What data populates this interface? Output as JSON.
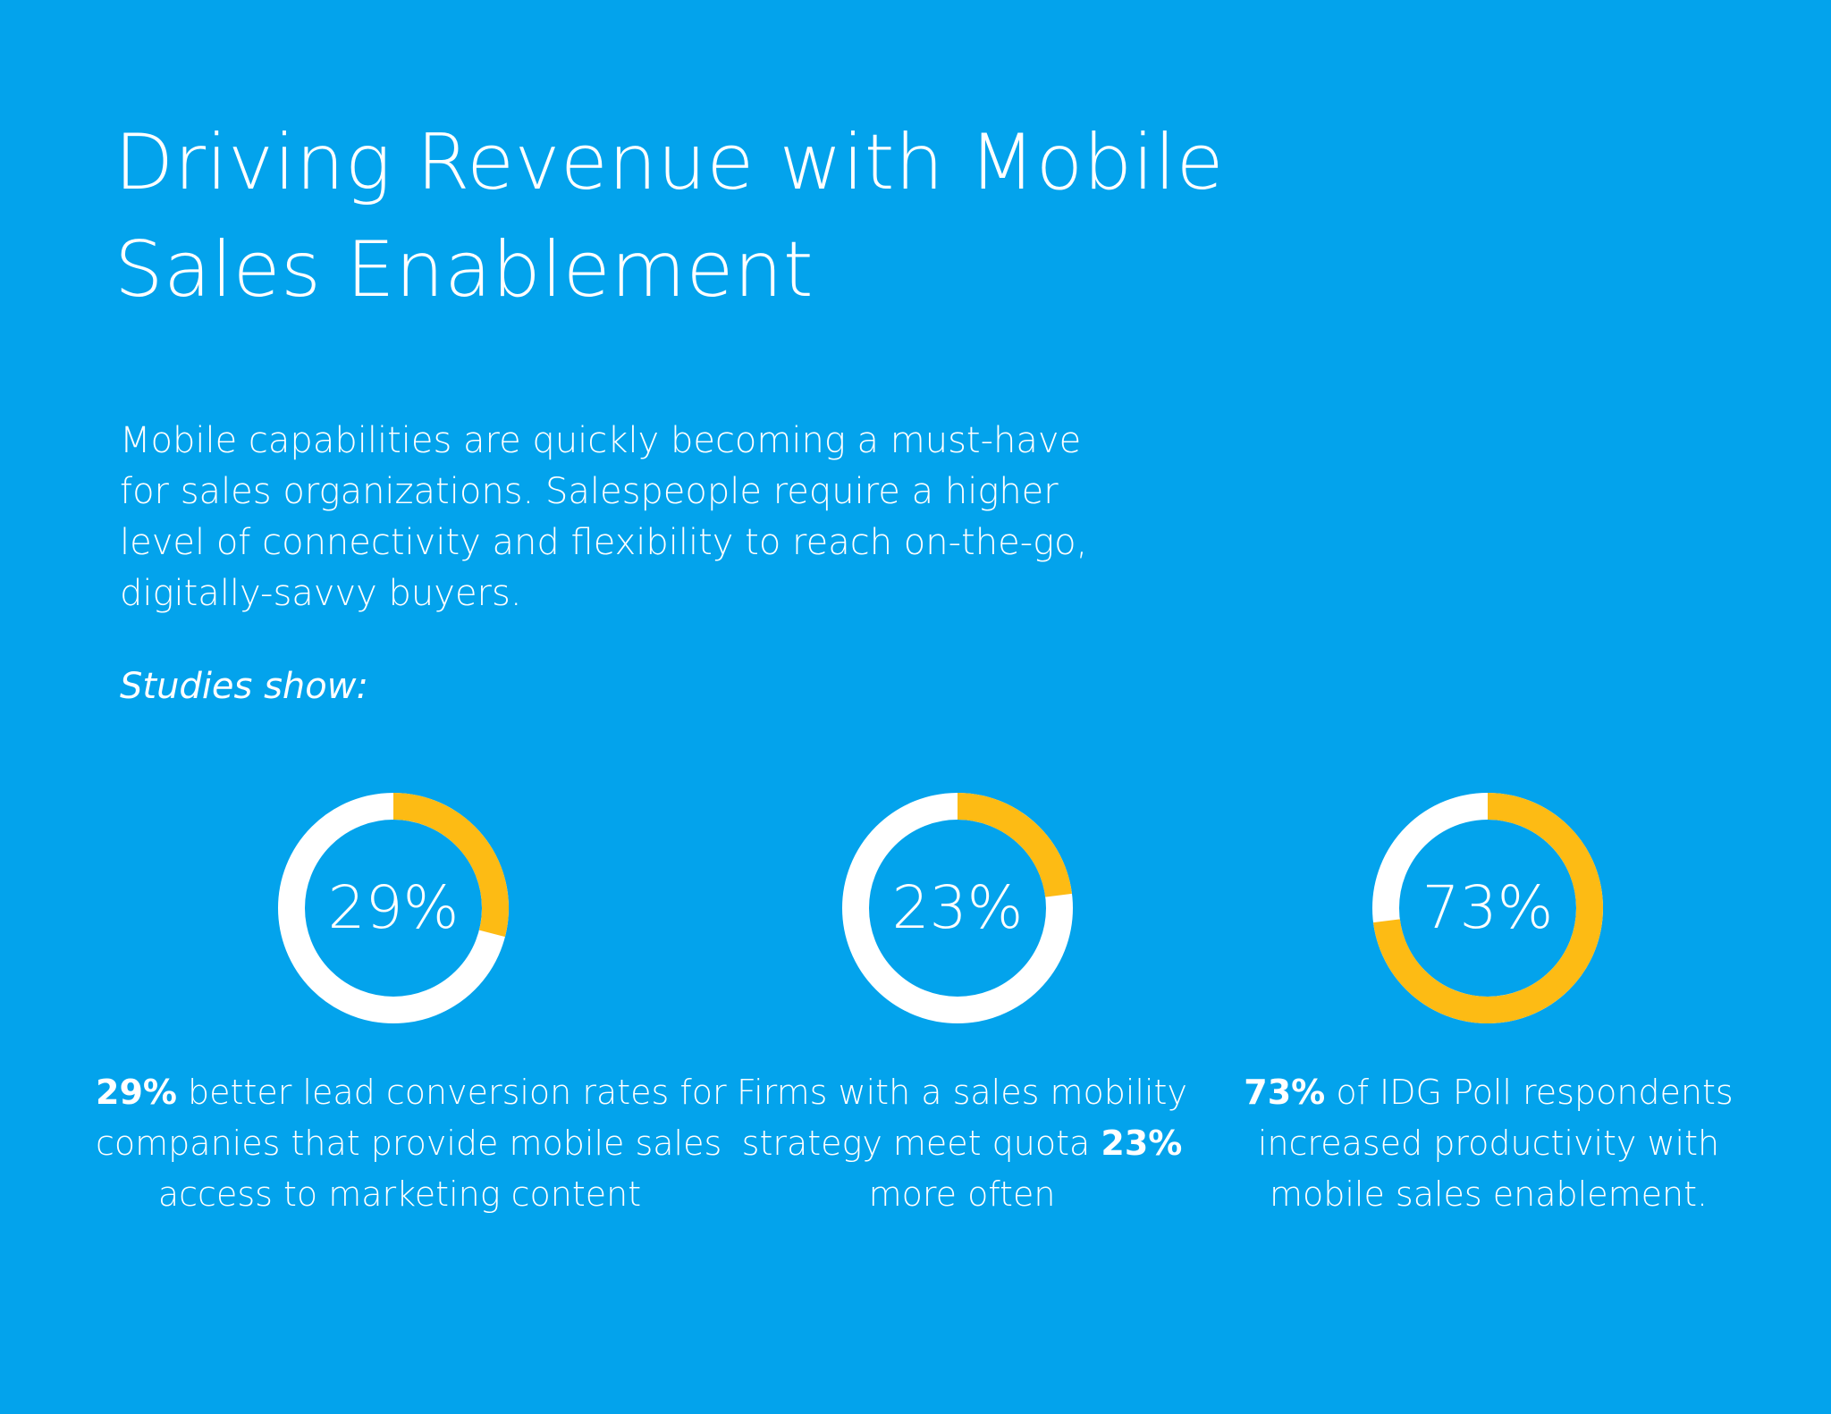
{
  "title_lines": [
    "Driving Revenue with Mobile",
    "Sales Enablement"
  ],
  "intro_lines": [
    "Mobile capabilities are quickly becoming a must-have",
    "for sales organizations. Salespeople require a higher",
    "level of connectivity and flexibility to reach on-the-go,",
    "digitally-savvy buyers."
  ],
  "studies_label": "Studies show:",
  "colors": {
    "background": "#03a3ec",
    "ring_track": "#ffffff",
    "ring_fill": "#fdbb14",
    "text": "#ffffff"
  },
  "chart_data": [
    {
      "type": "pie",
      "style": "donut",
      "label": "29%",
      "values": [
        29,
        71
      ],
      "caption_lines": [
        [
          {
            "text": "29%",
            "bold": true
          },
          {
            "text": " better lead conversion rates for",
            "bold": false
          }
        ],
        [
          {
            "text": "companies that provide mobile sales",
            "bold": false
          }
        ],
        [
          {
            "text": "access to marketing content",
            "bold": false
          }
        ]
      ]
    },
    {
      "type": "pie",
      "style": "donut",
      "label": "23%",
      "values": [
        23,
        77
      ],
      "caption_lines": [
        [
          {
            "text": "Firms with a sales mobility",
            "bold": false
          }
        ],
        [
          {
            "text": "strategy meet quota ",
            "bold": false
          },
          {
            "text": "23%",
            "bold": true
          }
        ],
        [
          {
            "text": "more often",
            "bold": false
          }
        ]
      ]
    },
    {
      "type": "pie",
      "style": "donut",
      "label": "73%",
      "values": [
        73,
        27
      ],
      "caption_lines": [
        [
          {
            "text": "73%",
            "bold": true
          },
          {
            "text": " of IDG Poll respondents",
            "bold": false
          }
        ],
        [
          {
            "text": "increased productivity with",
            "bold": false
          }
        ],
        [
          {
            "text": "mobile sales enablement.",
            "bold": false
          }
        ]
      ]
    }
  ]
}
